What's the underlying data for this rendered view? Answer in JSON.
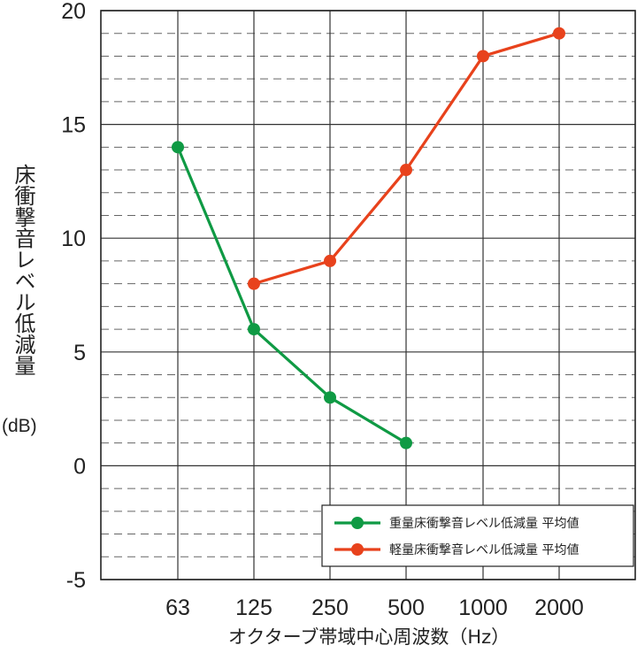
{
  "chart_data": {
    "type": "line",
    "categories": [
      "63",
      "125",
      "250",
      "500",
      "1000",
      "2000"
    ],
    "series": [
      {
        "name": "重量床衝撃音レベル低減量 平均値",
        "color": "#0f9a44",
        "values": [
          14,
          6,
          3,
          1,
          null,
          null
        ]
      },
      {
        "name": "軽量床衝撃音レベル低減量 平均値",
        "color": "#e8421c",
        "values": [
          null,
          8,
          9,
          13,
          18,
          19
        ]
      }
    ],
    "xlabel": "オクターブ帯域中心周波数（Hz）",
    "ylabel": "床衝撃音レベル低減量",
    "yunit": "(dB)",
    "ylim": [
      -5,
      20
    ],
    "yticks": [
      -5,
      0,
      5,
      10,
      15,
      20
    ],
    "grid": true,
    "legend": "bottom-right"
  }
}
